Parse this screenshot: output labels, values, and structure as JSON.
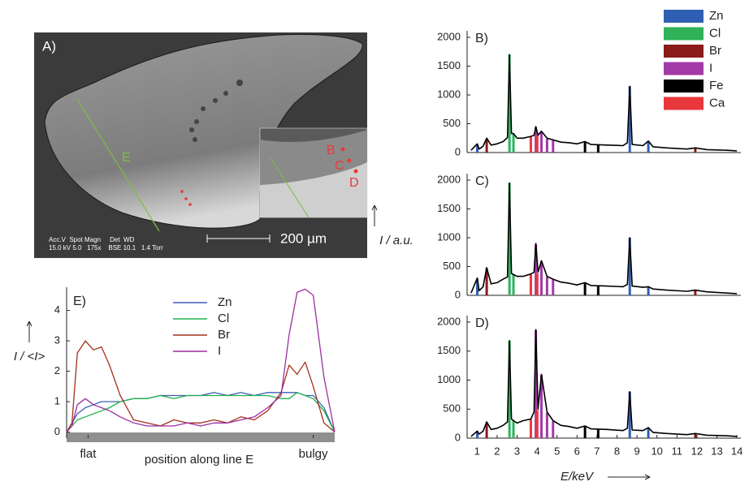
{
  "image": {
    "label": "A)",
    "line_label": "E",
    "points": [
      "B",
      "C",
      "D"
    ],
    "scale": "200 µm",
    "info": [
      "Acc.V  Spot Magn     Det  WD",
      "15.0 kV 5.0   175x    BSE 10.1   1.4 Torr"
    ]
  },
  "chart_data": [
    {
      "type": "line",
      "label": "B)",
      "color": "#000000",
      "x": [
        0.7,
        1.01,
        1.1,
        1.3,
        1.48,
        1.7,
        2.0,
        2.3,
        2.52,
        2.62,
        2.72,
        2.82,
        3.0,
        3.3,
        3.69,
        3.85,
        3.94,
        4.05,
        4.22,
        4.5,
        4.8,
        5.2,
        5.6,
        6.0,
        6.4,
        6.7,
        7.5,
        8.3,
        8.52,
        8.64,
        8.76,
        9.3,
        9.57,
        9.8,
        10.5,
        11.5,
        11.92,
        12.5,
        13.5,
        14.0
      ],
      "values": [
        40,
        150,
        60,
        110,
        250,
        130,
        150,
        190,
        260,
        1700,
        330,
        330,
        250,
        250,
        280,
        300,
        450,
        300,
        370,
        250,
        220,
        180,
        170,
        150,
        190,
        140,
        130,
        120,
        170,
        1150,
        140,
        120,
        200,
        100,
        80,
        60,
        80,
        50,
        40,
        30
      ],
      "xlim": [
        0.5,
        14.2
      ],
      "ylim": [
        0,
        2000
      ],
      "yticks": [
        0,
        500,
        1000,
        1500,
        2000
      ],
      "series": [
        {
          "name": "Zn",
          "color": "#2f5fb3",
          "x": [
            1.01,
            8.64,
            9.57
          ],
          "values": [
            140,
            1150,
            190
          ]
        },
        {
          "name": "Cl",
          "color": "#2fb25a",
          "x": [
            2.62,
            2.82
          ],
          "values": [
            1700,
            330
          ]
        },
        {
          "name": "Br",
          "color": "#8b1a1a",
          "x": [
            1.48,
            11.92
          ],
          "values": [
            240,
            70
          ]
        },
        {
          "name": "I",
          "color": "#a23aa8",
          "x": [
            3.94,
            4.22,
            4.5,
            4.8
          ],
          "values": [
            440,
            360,
            240,
            210
          ]
        },
        {
          "name": "Fe",
          "color": "#000000",
          "x": [
            6.4,
            7.06
          ],
          "values": [
            180,
            130
          ]
        },
        {
          "name": "Ca",
          "color": "#e8383d",
          "x": [
            3.69,
            4.01
          ],
          "values": [
            270,
            300
          ]
        }
      ]
    },
    {
      "type": "line",
      "label": "C)",
      "color": "#000000",
      "y_label": "I / a.u.",
      "x": [
        0.7,
        1.01,
        1.1,
        1.3,
        1.48,
        1.7,
        2.0,
        2.3,
        2.52,
        2.62,
        2.72,
        2.82,
        3.0,
        3.3,
        3.69,
        3.85,
        3.94,
        4.05,
        4.22,
        4.5,
        4.8,
        5.2,
        5.6,
        6.0,
        6.4,
        6.7,
        7.5,
        8.3,
        8.52,
        8.64,
        8.76,
        9.3,
        9.57,
        9.8,
        10.5,
        11.5,
        11.92,
        12.5,
        13.5,
        14.0
      ],
      "values": [
        40,
        300,
        80,
        150,
        480,
        200,
        220,
        280,
        320,
        1950,
        380,
        360,
        330,
        330,
        370,
        400,
        900,
        400,
        600,
        330,
        280,
        230,
        210,
        180,
        220,
        170,
        160,
        150,
        190,
        1000,
        160,
        140,
        150,
        110,
        90,
        70,
        90,
        60,
        40,
        30
      ],
      "xlim": [
        0.5,
        14.2
      ],
      "ylim": [
        0,
        2000
      ],
      "yticks": [
        0,
        500,
        1000,
        1500,
        2000
      ],
      "series": [
        {
          "color": "#2f5fb3",
          "x": [
            1.01,
            8.64,
            9.57
          ],
          "values": [
            290,
            1000,
            150
          ]
        },
        {
          "color": "#2fb25a",
          "x": [
            2.62,
            2.82
          ],
          "values": [
            1950,
            360
          ]
        },
        {
          "color": "#8b1a1a",
          "x": [
            1.48,
            11.92
          ],
          "values": [
            470,
            80
          ]
        },
        {
          "color": "#a23aa8",
          "x": [
            3.94,
            4.22,
            4.5,
            4.8
          ],
          "values": [
            880,
            590,
            320,
            270
          ]
        },
        {
          "color": "#000000",
          "x": [
            6.4,
            7.06
          ],
          "values": [
            210,
            160
          ]
        },
        {
          "color": "#e8383d",
          "x": [
            3.69,
            4.01
          ],
          "values": [
            360,
            380
          ]
        }
      ]
    },
    {
      "type": "line",
      "label": "D)",
      "color": "#000000",
      "x_label": "E/keV",
      "x": [
        0.7,
        1.01,
        1.1,
        1.3,
        1.48,
        1.7,
        2.0,
        2.3,
        2.52,
        2.62,
        2.72,
        2.82,
        3.0,
        3.3,
        3.69,
        3.85,
        3.94,
        4.05,
        4.22,
        4.5,
        4.8,
        5.2,
        5.6,
        6.0,
        6.4,
        6.7,
        7.5,
        8.3,
        8.52,
        8.64,
        8.76,
        9.3,
        9.57,
        9.8,
        10.5,
        11.5,
        11.92,
        12.5,
        13.5,
        14.0
      ],
      "values": [
        30,
        120,
        70,
        120,
        280,
        150,
        170,
        220,
        280,
        1680,
        330,
        300,
        260,
        300,
        330,
        450,
        1870,
        500,
        1100,
        450,
        300,
        220,
        200,
        170,
        210,
        160,
        150,
        130,
        170,
        800,
        140,
        130,
        180,
        100,
        80,
        60,
        80,
        50,
        40,
        30
      ],
      "xlim": [
        0.5,
        14.2
      ],
      "ylim": [
        0,
        2000
      ],
      "yticks": [
        0,
        500,
        1000,
        1500,
        2000
      ],
      "xticks": [
        1,
        2,
        3,
        4,
        5,
        6,
        7,
        8,
        9,
        10,
        11,
        12,
        13,
        14
      ],
      "series": [
        {
          "color": "#2f5fb3",
          "x": [
            1.01,
            8.64,
            9.57
          ],
          "values": [
            120,
            800,
            170
          ]
        },
        {
          "color": "#2fb25a",
          "x": [
            2.62,
            2.82
          ],
          "values": [
            1680,
            300
          ]
        },
        {
          "color": "#8b1a1a",
          "x": [
            1.48,
            11.92
          ],
          "values": [
            270,
            70
          ]
        },
        {
          "color": "#a23aa8",
          "x": [
            3.94,
            4.22,
            4.5,
            4.8
          ],
          "values": [
            1860,
            1090,
            440,
            290
          ]
        },
        {
          "color": "#000000",
          "x": [
            6.4,
            7.06
          ],
          "values": [
            200,
            150
          ]
        },
        {
          "color": "#e8383d",
          "x": [
            3.69,
            4.01
          ],
          "values": [
            320,
            480
          ]
        }
      ]
    },
    {
      "type": "line",
      "label": "E)",
      "x_label": "position along line E",
      "y_label": "I / <I>",
      "x": [
        0,
        0.02,
        0.04,
        0.07,
        0.1,
        0.13,
        0.16,
        0.2,
        0.25,
        0.3,
        0.35,
        0.4,
        0.45,
        0.5,
        0.55,
        0.6,
        0.65,
        0.7,
        0.75,
        0.8,
        0.83,
        0.86,
        0.89,
        0.92,
        0.96,
        1.0
      ],
      "xlim": [
        0,
        1
      ],
      "ylim": [
        -0.2,
        4.55
      ],
      "yticks": [
        0,
        1,
        2,
        3,
        4
      ],
      "xticks": [
        {
          "value": 0.08,
          "label": "flat"
        },
        {
          "value": 0.92,
          "label": "bulgy"
        }
      ],
      "series": [
        {
          "name": "Zn",
          "color": "#3b5fb5",
          "values": [
            0,
            0.3,
            0.6,
            0.8,
            0.9,
            1.0,
            1.0,
            1.0,
            1.1,
            1.1,
            1.2,
            1.2,
            1.2,
            1.2,
            1.3,
            1.2,
            1.3,
            1.2,
            1.3,
            1.3,
            1.3,
            1.3,
            1.2,
            1.2,
            0.8,
            0
          ]
        },
        {
          "name": "Cl",
          "color": "#22b14c",
          "values": [
            0,
            0.2,
            0.4,
            0.5,
            0.6,
            0.7,
            0.8,
            1.0,
            1.1,
            1.1,
            1.2,
            1.1,
            1.2,
            1.2,
            1.2,
            1.2,
            1.2,
            1.2,
            1.2,
            1.1,
            1.1,
            1.3,
            1.2,
            1.1,
            0.7,
            0
          ]
        },
        {
          "name": "Br",
          "color": "#a4301c",
          "values": [
            0,
            0.3,
            2.6,
            3.0,
            2.7,
            2.8,
            2.2,
            1.2,
            0.4,
            0.3,
            0.2,
            0.4,
            0.3,
            0.3,
            0.4,
            0.3,
            0.5,
            0.4,
            0.7,
            1.3,
            2.2,
            1.9,
            2.3,
            1.5,
            0.3,
            0
          ]
        },
        {
          "name": "I",
          "color": "#9b2fa0",
          "values": [
            0,
            0.2,
            0.9,
            1.1,
            0.9,
            0.8,
            0.7,
            0.5,
            0.3,
            0.2,
            0.2,
            0.2,
            0.3,
            0.2,
            0.3,
            0.3,
            0.4,
            0.5,
            0.8,
            1.2,
            3.2,
            4.6,
            4.7,
            4.5,
            1.8,
            0
          ]
        }
      ]
    }
  ]
}
